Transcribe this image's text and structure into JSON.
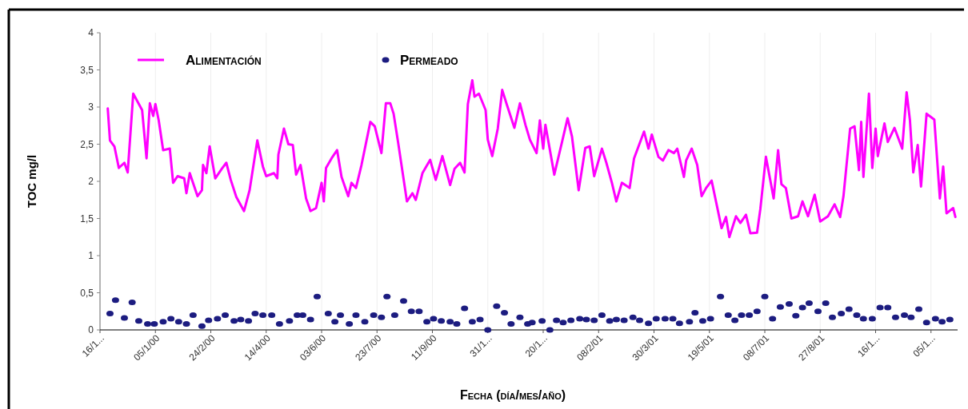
{
  "chart_data": {
    "type": "line",
    "xlabel": "Fecha (día/mes/año)",
    "ylabel": "TOC mg/l",
    "xlim": [
      "1999-11-16",
      "2001-12-29"
    ],
    "xticks": [
      {
        "value": "1999-11-16",
        "label": "16/1..."
      },
      {
        "value": "2000-01-05",
        "label": "05/1/00"
      },
      {
        "value": "2000-02-24",
        "label": "24/2/00"
      },
      {
        "value": "2000-04-14",
        "label": "14/4/00"
      },
      {
        "value": "2000-06-03",
        "label": "03/6/00"
      },
      {
        "value": "2000-07-23",
        "label": "23/7/00"
      },
      {
        "value": "2000-09-11",
        "label": "11/9/00"
      },
      {
        "value": "2000-10-31",
        "label": "31/1..."
      },
      {
        "value": "2000-12-20",
        "label": "20/1..."
      },
      {
        "value": "2001-02-08",
        "label": "08/2/01"
      },
      {
        "value": "2001-03-30",
        "label": "30/3/01"
      },
      {
        "value": "2001-05-19",
        "label": "19/5/01"
      },
      {
        "value": "2001-07-08",
        "label": "08/7/01"
      },
      {
        "value": "2001-08-27",
        "label": "27/8/01"
      },
      {
        "value": "2001-10-16",
        "label": "16/1..."
      },
      {
        "value": "2001-12-05",
        "label": "05/1..."
      }
    ],
    "ylim": [
      0,
      4
    ],
    "yticks": [
      0,
      {
        "value": 0.5,
        "label": "0,5"
      },
      1,
      {
        "value": 1.5,
        "label": "1,5"
      },
      2,
      {
        "value": 2.5,
        "label": "2,5"
      },
      3,
      {
        "value": 3.5,
        "label": "3,5"
      },
      4
    ],
    "grid": "x",
    "legend": "top",
    "series": [
      {
        "name": "Alimentación",
        "color": "#ff00ff",
        "marker": "none",
        "line_style": "solid",
        "x": [
          "1999-11-23",
          "1999-11-25",
          "1999-11-29",
          "1999-12-03",
          "1999-12-08",
          "1999-12-11",
          "1999-12-16",
          "1999-12-20",
          "1999-12-24",
          "1999-12-28",
          "1999-12-31",
          "2000-01-03",
          "2000-01-05",
          "2000-01-08",
          "2000-01-12",
          "2000-01-18",
          "2000-01-21",
          "2000-01-25",
          "2000-01-31",
          "2000-02-02",
          "2000-02-05",
          "2000-02-12",
          "2000-02-16",
          "2000-02-17",
          "2000-02-20",
          "2000-02-23",
          "2000-02-28",
          "2000-03-05",
          "2000-03-09",
          "2000-03-13",
          "2000-03-18",
          "2000-03-25",
          "2000-03-30",
          "2000-04-06",
          "2000-04-11",
          "2000-04-14",
          "2000-04-21",
          "2000-04-24",
          "2000-04-25",
          "2000-04-30",
          "2000-05-04",
          "2000-05-08",
          "2000-05-11",
          "2000-05-15",
          "2000-05-20",
          "2000-05-24",
          "2000-05-29",
          "2000-06-03",
          "2000-06-05",
          "2000-06-07",
          "2000-06-12",
          "2000-06-17",
          "2000-06-21",
          "2000-06-27",
          "2000-06-30",
          "2000-07-04",
          "2000-07-09",
          "2000-07-17",
          "2000-07-21",
          "2000-07-27",
          "2000-07-31",
          "2000-08-04",
          "2000-08-07",
          "2000-08-11",
          "2000-08-19",
          "2000-08-24",
          "2000-08-27",
          "2000-09-02",
          "2000-09-09",
          "2000-09-14",
          "2000-09-20",
          "2000-09-27",
          "2000-10-01",
          "2000-10-06",
          "2000-10-10",
          "2000-10-13",
          "2000-10-17",
          "2000-10-19",
          "2000-10-23",
          "2000-10-29",
          "2000-10-31",
          "2000-11-04",
          "2000-11-09",
          "2000-11-13",
          "2000-11-17",
          "2000-11-24",
          "2000-11-29",
          "2000-12-04",
          "2000-12-08",
          "2000-12-14",
          "2000-12-17",
          "2000-12-20",
          "2000-12-22",
          "2000-12-30",
          "2001-01-06",
          "2001-01-11",
          "2001-01-15",
          "2001-01-21",
          "2001-01-27",
          "2001-01-31",
          "2001-02-04",
          "2001-02-11",
          "2001-02-15",
          "2001-02-20",
          "2001-02-24",
          "2001-03-01",
          "2001-03-08",
          "2001-03-12",
          "2001-03-21",
          "2001-03-25",
          "2001-03-28",
          "2001-04-03",
          "2001-04-07",
          "2001-04-12",
          "2001-04-17",
          "2001-04-20",
          "2001-04-26",
          "2001-04-28",
          "2001-05-03",
          "2001-05-08",
          "2001-05-12",
          "2001-05-16",
          "2001-05-21",
          "2001-05-30",
          "2001-06-03",
          "2001-06-06",
          "2001-06-12",
          "2001-06-16",
          "2001-06-21",
          "2001-06-25",
          "2001-07-01",
          "2001-07-04",
          "2001-07-09",
          "2001-07-16",
          "2001-07-20",
          "2001-07-23",
          "2001-07-27",
          "2001-08-01",
          "2001-08-07",
          "2001-08-11",
          "2001-08-16",
          "2001-08-22",
          "2001-08-27",
          "2001-09-03",
          "2001-09-09",
          "2001-09-14",
          "2001-09-17",
          "2001-09-23",
          "2001-09-27",
          "2001-10-01",
          "2001-10-03",
          "2001-10-05",
          "2001-10-10",
          "2001-10-13",
          "2001-10-16",
          "2001-10-18",
          "2001-10-24",
          "2001-10-27",
          "2001-11-02",
          "2001-11-09",
          "2001-11-13",
          "2001-11-16",
          "2001-11-19",
          "2001-11-23",
          "2001-11-26",
          "2001-12-01",
          "2001-12-08",
          "2001-12-13",
          "2001-12-16",
          "2001-12-19",
          "2001-12-25",
          "2001-12-27"
        ],
        "values": [
          2.98,
          2.55,
          2.47,
          2.18,
          2.25,
          2.12,
          3.18,
          3.07,
          2.96,
          2.31,
          3.05,
          2.88,
          3.04,
          2.82,
          2.42,
          2.44,
          1.98,
          2.07,
          2.04,
          1.84,
          2.11,
          1.8,
          1.88,
          2.22,
          2.11,
          2.47,
          2.04,
          2.17,
          2.25,
          2.02,
          1.79,
          1.6,
          1.88,
          2.55,
          2.2,
          2.07,
          2.11,
          2.04,
          2.36,
          2.71,
          2.5,
          2.49,
          2.09,
          2.22,
          1.77,
          1.6,
          1.64,
          1.98,
          1.73,
          2.18,
          2.31,
          2.42,
          2.06,
          1.8,
          1.98,
          1.91,
          2.22,
          2.8,
          2.74,
          2.38,
          3.05,
          3.05,
          2.91,
          2.53,
          1.73,
          1.84,
          1.75,
          2.11,
          2.29,
          2.02,
          2.34,
          1.95,
          2.17,
          2.25,
          2.12,
          3.04,
          3.36,
          3.14,
          3.18,
          2.96,
          2.56,
          2.34,
          2.71,
          3.23,
          3.04,
          2.72,
          3.05,
          2.76,
          2.56,
          2.38,
          2.82,
          2.44,
          2.76,
          2.09,
          2.53,
          2.85,
          2.6,
          1.88,
          2.45,
          2.47,
          2.07,
          2.44,
          2.25,
          1.98,
          1.73,
          1.98,
          1.91,
          2.31,
          2.67,
          2.44,
          2.63,
          2.33,
          2.28,
          2.42,
          2.38,
          2.44,
          2.06,
          2.28,
          2.44,
          2.22,
          1.8,
          1.91,
          2.01,
          1.37,
          1.52,
          1.25,
          1.53,
          1.44,
          1.55,
          1.3,
          1.31,
          1.63,
          2.33,
          1.77,
          2.42,
          1.96,
          1.91,
          1.5,
          1.53,
          1.73,
          1.53,
          1.82,
          1.46,
          1.53,
          1.69,
          1.52,
          1.8,
          2.71,
          2.74,
          2.15,
          2.8,
          2.06,
          3.18,
          2.18,
          2.71,
          2.34,
          2.78,
          2.53,
          2.72,
          2.44,
          3.2,
          2.82,
          2.12,
          2.49,
          1.93,
          2.91,
          2.83,
          1.77,
          2.2,
          1.57,
          1.64,
          1.52
        ]
      },
      {
        "name": "Permeado",
        "type": "scatter",
        "color": "#1c1c80",
        "marker": "circle",
        "x": [
          "1999-11-25",
          "1999-11-30",
          "1999-12-08",
          "1999-12-15",
          "1999-12-21",
          "1999-12-29",
          "2000-01-04",
          "2000-01-12",
          "2000-01-19",
          "2000-01-26",
          "2000-02-02",
          "2000-02-08",
          "2000-02-16",
          "2000-02-22",
          "2000-03-01",
          "2000-03-08",
          "2000-03-16",
          "2000-03-22",
          "2000-03-29",
          "2000-04-04",
          "2000-04-11",
          "2000-04-19",
          "2000-04-26",
          "2000-05-05",
          "2000-05-12",
          "2000-05-17",
          "2000-05-24",
          "2000-05-30",
          "2000-06-09",
          "2000-06-15",
          "2000-06-20",
          "2000-06-28",
          "2000-07-04",
          "2000-07-12",
          "2000-07-20",
          "2000-07-27",
          "2000-08-01",
          "2000-08-08",
          "2000-08-16",
          "2000-08-23",
          "2000-08-30",
          "2000-09-06",
          "2000-09-12",
          "2000-09-19",
          "2000-09-27",
          "2000-10-03",
          "2000-10-10",
          "2000-10-17",
          "2000-10-24",
          "2000-10-31",
          "2000-11-08",
          "2000-11-15",
          "2000-11-21",
          "2000-11-29",
          "2000-12-06",
          "2000-12-10",
          "2000-12-19",
          "2000-12-26",
          "2001-01-01",
          "2001-01-07",
          "2001-01-14",
          "2001-01-22",
          "2001-01-28",
          "2001-02-04",
          "2001-02-11",
          "2001-02-18",
          "2001-02-24",
          "2001-03-03",
          "2001-03-11",
          "2001-03-17",
          "2001-03-25",
          "2001-04-01",
          "2001-04-09",
          "2001-04-16",
          "2001-04-22",
          "2001-05-01",
          "2001-05-06",
          "2001-05-13",
          "2001-05-20",
          "2001-05-29",
          "2001-06-05",
          "2001-06-11",
          "2001-06-17",
          "2001-06-24",
          "2001-07-01",
          "2001-07-08",
          "2001-07-15",
          "2001-07-22",
          "2001-07-30",
          "2001-08-05",
          "2001-08-11",
          "2001-08-17",
          "2001-08-25",
          "2001-09-01",
          "2001-09-07",
          "2001-09-15",
          "2001-09-22",
          "2001-09-29",
          "2001-10-05",
          "2001-10-13",
          "2001-10-20",
          "2001-10-27",
          "2001-11-03",
          "2001-11-11",
          "2001-11-17",
          "2001-11-24",
          "2001-12-01",
          "2001-12-09",
          "2001-12-15",
          "2001-12-22"
        ],
        "values": [
          0.22,
          0.4,
          0.16,
          0.37,
          0.12,
          0.08,
          0.08,
          0.11,
          0.15,
          0.11,
          0.08,
          0.2,
          0.05,
          0.13,
          0.15,
          0.2,
          0.12,
          0.14,
          0.12,
          0.22,
          0.2,
          0.2,
          0.08,
          0.12,
          0.2,
          0.2,
          0.14,
          0.45,
          0.22,
          0.11,
          0.2,
          0.08,
          0.2,
          0.11,
          0.2,
          0.17,
          0.45,
          0.2,
          0.39,
          0.25,
          0.25,
          0.11,
          0.15,
          0.12,
          0.11,
          0.08,
          0.29,
          0.11,
          0.14,
          0,
          0.32,
          0.23,
          0.08,
          0.17,
          0.08,
          0.1,
          0.12,
          0,
          0.13,
          0.1,
          0.13,
          0.15,
          0.14,
          0.13,
          0.2,
          0.12,
          0.14,
          0.13,
          0.17,
          0.13,
          0.09,
          0.15,
          0.15,
          0.15,
          0.09,
          0.11,
          0.23,
          0.12,
          0.15,
          0.45,
          0.2,
          0.13,
          0.2,
          0.2,
          0.25,
          0.45,
          0.15,
          0.31,
          0.35,
          0.19,
          0.3,
          0.36,
          0.25,
          0.36,
          0.17,
          0.22,
          0.28,
          0.2,
          0.15,
          0.15,
          0.3,
          0.3,
          0.17,
          0.2,
          0.17,
          0.28,
          0.1,
          0.15,
          0.11,
          0.14
        ]
      }
    ]
  }
}
